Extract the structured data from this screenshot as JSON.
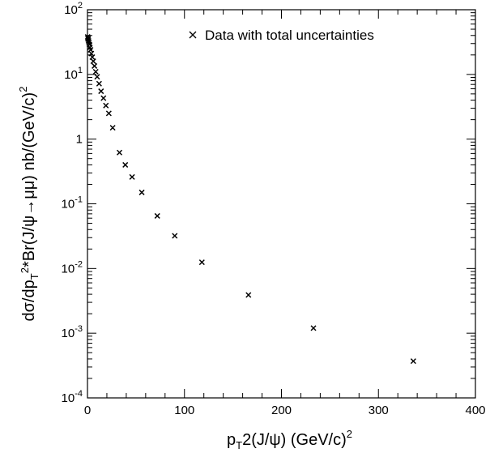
{
  "chart_data": {
    "type": "scatter",
    "title": "",
    "xlabel": "p_T^2(J/ψ) (GeV/c)^2",
    "ylabel": "dσ/dp_T^2*Br(J/ψ→μμ) nb/(GeV/c)^2",
    "xlim": [
      0,
      400
    ],
    "ylim": [
      0.0001,
      100
    ],
    "yscale": "log",
    "grid": false,
    "legend": {
      "position": "top-right",
      "entries": [
        "Data with total uncertainties"
      ]
    },
    "marker": "x",
    "x_ticks": [
      "0",
      "100",
      "200",
      "300",
      "400"
    ],
    "y_ticks": [
      {
        "base": "10",
        "exp": "-4"
      },
      {
        "base": "10",
        "exp": "-3"
      },
      {
        "base": "10",
        "exp": "-2"
      },
      {
        "base": "10",
        "exp": "-1"
      },
      {
        "base": "1",
        "exp": ""
      },
      {
        "base": "10",
        "exp": "1"
      },
      {
        "base": "10",
        "exp": "2"
      }
    ],
    "series": [
      {
        "name": "Data with total uncertainties",
        "x": [
          0.2,
          0.5,
          0.8,
          1.1,
          1.5,
          2.0,
          2.5,
          3.2,
          4.0,
          5.0,
          6.0,
          7.2,
          8.5,
          10,
          12,
          14,
          16.5,
          19,
          22,
          26,
          33,
          39,
          46,
          56,
          72,
          90,
          118,
          166,
          233,
          336
        ],
        "y": [
          38,
          36,
          35,
          33,
          31,
          29,
          26,
          24,
          21,
          18.5,
          16,
          13.5,
          11,
          9.2,
          7.2,
          5.5,
          4.3,
          3.3,
          2.5,
          1.5,
          0.62,
          0.4,
          0.26,
          0.15,
          0.065,
          0.032,
          0.0125,
          0.0039,
          0.0012,
          0.00037
        ]
      }
    ]
  }
}
